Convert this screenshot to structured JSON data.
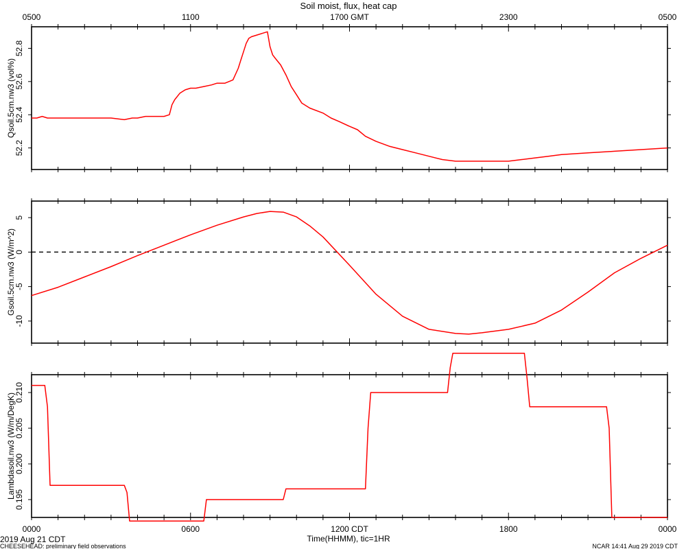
{
  "title": "Soil moist, flux, heat cap",
  "top_axis": {
    "ticks": [
      {
        "hour": 0,
        "label": "0500"
      },
      {
        "hour": 6,
        "label": "1100"
      },
      {
        "hour": 12,
        "label": "1700 GMT"
      },
      {
        "hour": 18,
        "label": "2300"
      },
      {
        "hour": 24,
        "label": "0500"
      }
    ]
  },
  "bottom_axis": {
    "ticks": [
      {
        "hour": 0,
        "label": "0000"
      },
      {
        "hour": 6,
        "label": "0600"
      },
      {
        "hour": 12,
        "label": "1200 CDT"
      },
      {
        "hour": 18,
        "label": "1800"
      },
      {
        "hour": 24,
        "label": "0000"
      }
    ],
    "xlabel": "Time(HHMM), tic=1HR"
  },
  "footer": {
    "date": "2019 Aug 21 CDT",
    "project": "CHEESEHEAD: preliminary field observations",
    "credit": "NCAR 14:41 Aug 29 2019 CDT"
  },
  "colors": {
    "series": "#ff0000",
    "axis": "#000000"
  },
  "chart_data": [
    {
      "type": "line",
      "ylabel": "Qsoil.5cm.nw3 (vol%)",
      "ylim": [
        52.07,
        52.93
      ],
      "yticks": [
        52.2,
        52.4,
        52.6,
        52.8
      ],
      "ytick_labels": [
        "52.2",
        "52.4",
        "52.6",
        "52.8"
      ],
      "x_unit": "hours since 0000 CDT",
      "series": [
        {
          "x": [
            0,
            0.2,
            0.4,
            0.6,
            1,
            2,
            3,
            3.5,
            3.8,
            4,
            4.3,
            4.5,
            4.8,
            5,
            5.2,
            5.3,
            5.4,
            5.6,
            5.8,
            6,
            6.2,
            6.5,
            6.8,
            7,
            7.3,
            7.6,
            7.8,
            7.9,
            8,
            8.1,
            8.2,
            8.3,
            8.5,
            8.7,
            8.9,
            9,
            9.1,
            9.2,
            9.4,
            9.6,
            9.8,
            10,
            10.2,
            10.5,
            11,
            11.3,
            11.6,
            12,
            12.3,
            12.6,
            13,
            13.5,
            14,
            14.5,
            15,
            15.5,
            16,
            16.5,
            17,
            17.5,
            18,
            18.5,
            19,
            19.5,
            20,
            21,
            22,
            23,
            24
          ],
          "values": [
            52.38,
            52.38,
            52.39,
            52.38,
            52.38,
            52.38,
            52.38,
            52.37,
            52.38,
            52.38,
            52.39,
            52.39,
            52.39,
            52.39,
            52.4,
            52.46,
            52.49,
            52.53,
            52.55,
            52.56,
            52.56,
            52.57,
            52.58,
            52.59,
            52.59,
            52.61,
            52.68,
            52.73,
            52.78,
            52.83,
            52.86,
            52.87,
            52.88,
            52.89,
            52.9,
            52.81,
            52.76,
            52.74,
            52.7,
            52.64,
            52.57,
            52.52,
            52.47,
            52.44,
            52.41,
            52.38,
            52.36,
            52.33,
            52.31,
            52.27,
            52.24,
            52.21,
            52.19,
            52.17,
            52.15,
            52.13,
            52.12,
            52.12,
            52.12,
            52.12,
            52.12,
            52.13,
            52.14,
            52.15,
            52.16,
            52.17,
            52.18,
            52.19,
            52.2
          ]
        }
      ]
    },
    {
      "type": "line",
      "ylabel": "Gsoil.5cm.nw3 (W/m^2)",
      "ylim": [
        -13.2,
        7.4
      ],
      "yticks": [
        -10,
        -5,
        0,
        5
      ],
      "ytick_labels": [
        "-10",
        "-5",
        "0",
        "5"
      ],
      "x_unit": "hours since 0000 CDT",
      "reference_line": {
        "y": 0,
        "style": "dashed"
      },
      "series": [
        {
          "x": [
            0,
            1,
            2,
            3,
            4,
            5,
            6,
            7,
            8,
            8.5,
            9,
            9.5,
            10,
            10.5,
            11,
            12,
            13,
            14,
            15,
            16,
            16.5,
            17,
            18,
            19,
            20,
            21,
            22,
            23,
            24
          ],
          "values": [
            -6.3,
            -5.1,
            -3.6,
            -2.1,
            -0.5,
            1.0,
            2.5,
            3.9,
            5.1,
            5.6,
            5.9,
            5.8,
            5.1,
            3.8,
            2.2,
            -1.9,
            -6.1,
            -9.3,
            -11.2,
            -11.8,
            -11.9,
            -11.7,
            -11.2,
            -10.3,
            -8.4,
            -5.8,
            -3.0,
            -0.9,
            1.0
          ]
        }
      ]
    },
    {
      "type": "line",
      "ylabel": "Lambdasoil.nw3 (W/m/DegK)",
      "ylim": [
        0.1925,
        0.2125
      ],
      "yticks": [
        0.195,
        0.2,
        0.205,
        0.21
      ],
      "ytick_labels": [
        "0.195",
        "0.200",
        "0.205",
        "0.210"
      ],
      "x_unit": "hours since 0000 CDT",
      "series": [
        {
          "x": [
            0,
            0.5,
            0.6,
            0.7,
            3.5,
            3.6,
            3.7,
            6.5,
            6.6,
            9.5,
            9.6,
            12.6,
            12.7,
            12.8,
            15.7,
            15.8,
            15.9,
            18.6,
            18.7,
            18.8,
            21.7,
            21.8,
            21.9,
            24
          ],
          "values": [
            0.211,
            0.211,
            0.208,
            0.197,
            0.197,
            0.196,
            0.192,
            0.192,
            0.195,
            0.195,
            0.1965,
            0.1965,
            0.205,
            0.21,
            0.21,
            0.2135,
            0.2155,
            0.2155,
            0.212,
            0.208,
            0.208,
            0.205,
            0.1925,
            0.1925
          ]
        }
      ]
    }
  ]
}
